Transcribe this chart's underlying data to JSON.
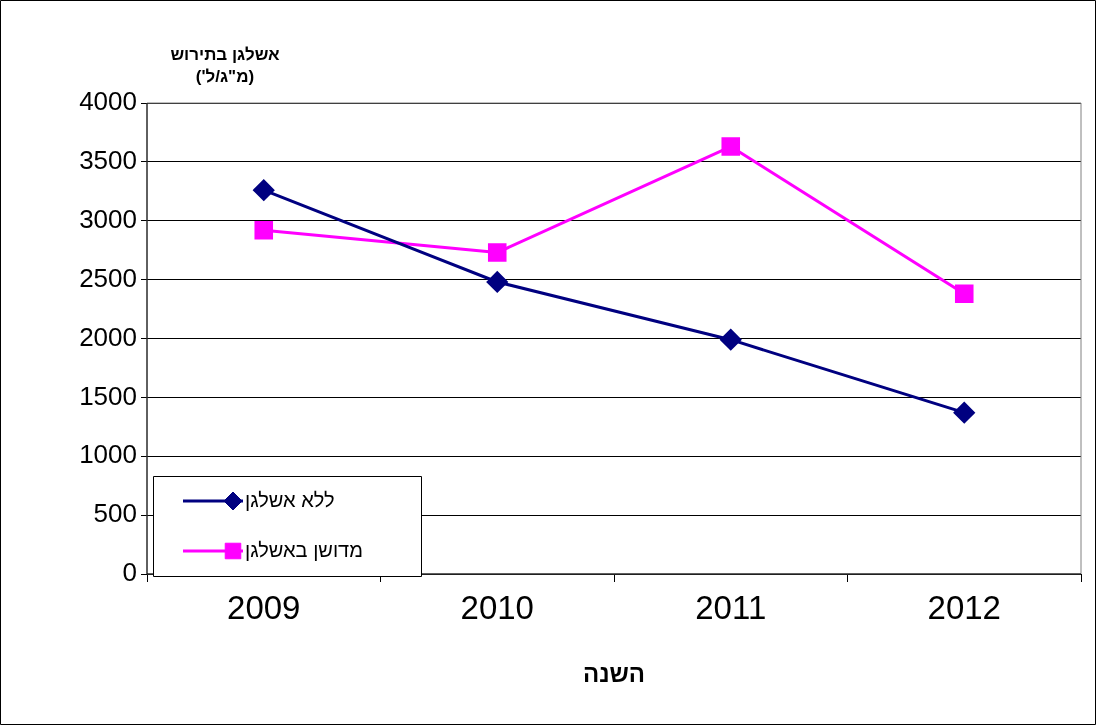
{
  "chart_data": {
    "type": "line",
    "categories": [
      "2009",
      "2010",
      "2011",
      "2012"
    ],
    "xlabel": "השנה",
    "ylabel": "אשלגן בתירוש\n(מ\"ג/ל')",
    "ylim": [
      0,
      4000
    ],
    "yticks": [
      0,
      500,
      1000,
      1500,
      2000,
      2500,
      3000,
      3500,
      4000
    ],
    "grid": "y",
    "legend": "bottom left",
    "line_style": "solid",
    "series": [
      {
        "name": "ללא אשלגן",
        "color": "#000080",
        "marker": "diamond",
        "values": [
          3260,
          2480,
          1990,
          1370
        ]
      },
      {
        "name": "מדושן באשלגן",
        "color": "#ff00ff",
        "marker": "square",
        "values": [
          2920,
          2730,
          3630,
          2380
        ]
      }
    ]
  }
}
